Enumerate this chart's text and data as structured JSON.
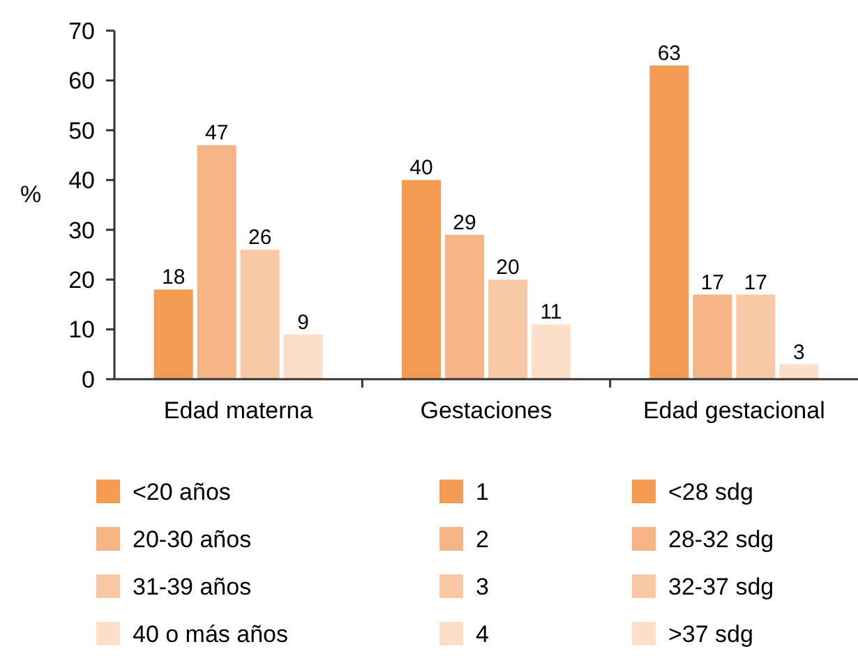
{
  "chart_data": {
    "type": "bar",
    "ylabel": "%",
    "categories": [
      "Edad materna",
      "Gestaciones",
      "Edad gestacional"
    ],
    "ylim": [
      0,
      70
    ],
    "yticks": [
      0,
      10,
      20,
      30,
      40,
      50,
      60,
      70
    ],
    "data_labels": true,
    "grid": false,
    "legend": "bottom",
    "series": [
      {
        "name": "<20 años",
        "color": "#f59a52",
        "values": [
          18,
          null,
          null
        ]
      },
      {
        "name": "20-30 años",
        "color": "#f7b485",
        "values": [
          47,
          null,
          null
        ]
      },
      {
        "name": "31-39 años",
        "color": "#f9c9a6",
        "values": [
          26,
          null,
          null
        ]
      },
      {
        "name": "40 o más años",
        "color": "#fbdfc8",
        "values": [
          9,
          null,
          null
        ]
      },
      {
        "name": "1",
        "color": "#f59a52",
        "values": [
          null,
          40,
          null
        ]
      },
      {
        "name": "2",
        "color": "#f7b485",
        "values": [
          null,
          29,
          null
        ]
      },
      {
        "name": "3",
        "color": "#f9c9a6",
        "values": [
          null,
          20,
          null
        ]
      },
      {
        "name": "4",
        "color": "#fbdfc8",
        "values": [
          null,
          11,
          null
        ]
      },
      {
        "name": "<28 sdg",
        "color": "#f59a52",
        "values": [
          null,
          null,
          63
        ]
      },
      {
        "name": "28-32 sdg",
        "color": "#f7b485",
        "values": [
          null,
          null,
          17
        ]
      },
      {
        "name": "32-37 sdg",
        "color": "#f9c9a6",
        "values": [
          null,
          null,
          17
        ]
      },
      {
        "name": ">37 sdg",
        "color": "#fbdfc8",
        "values": [
          null,
          null,
          3
        ]
      }
    ]
  }
}
